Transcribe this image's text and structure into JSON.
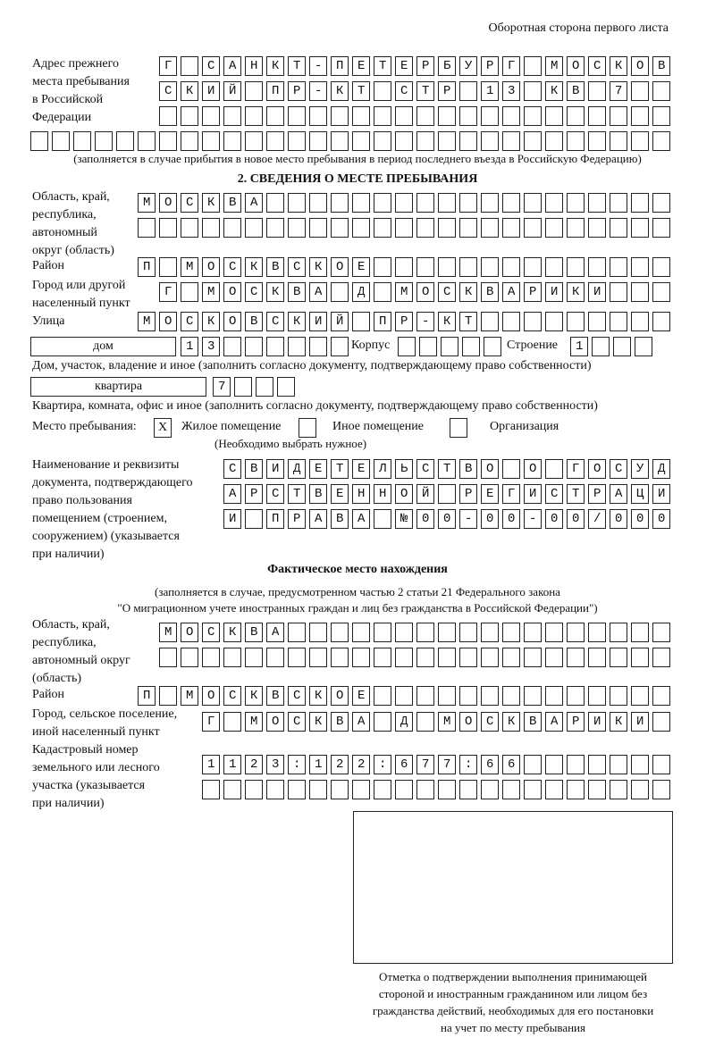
{
  "header": {
    "side_note": "Оборотная сторона первого листа"
  },
  "prev_address": {
    "label": "Адрес прежнего\nместа пребывания\nв Российской\nФедерации",
    "rows": [
      "Г САНКТ-ПЕТЕРБУРГ МОСКОВ",
      "СКИЙ ПР-КТ СТР 13 КВ 7",
      "",
      ""
    ],
    "note": "(заполняется в случае прибытия в новое место пребывания в период последнего въезда в Российскую Федерацию)"
  },
  "section2": {
    "title": "2. СВЕДЕНИЯ О МЕСТЕ ПРЕБЫВАНИЯ",
    "region_label": "Область, край,\nреспублика,\nавтономный\nокруг (область)",
    "region_rows": [
      "МОСКВА",
      ""
    ],
    "district_label": "Район",
    "district": "П МОСКВСКОЕ",
    "city_label": "Город или другой\nнаселенный пункт",
    "city": "Г МОСКВА Д МОСКВАРИКИ",
    "street_label": "Улица",
    "street": "МОСКОВСКИЙ ПР-КТ",
    "house_type": "дом",
    "house": "13",
    "korpus_label": "Корпус",
    "korpus": "",
    "building_label": "Строение",
    "building": "1",
    "house_caption": "Дом, участок, владение и иное (заполнить согласно документу, подтверждающему право собственности)",
    "apt_type": "квартира",
    "apt": "7",
    "apt_caption": "Квартира, комната, офис и иное (заполнить согласно документу, подтверждающему право собственности)",
    "stay_label": "Место пребывания:",
    "stay_options": [
      {
        "label": "Жилое помещение",
        "mark": "X"
      },
      {
        "label": "Иное помещение",
        "mark": ""
      },
      {
        "label": "Организация",
        "mark": ""
      }
    ],
    "stay_hint": "(Необходимо выбрать нужное)",
    "doc_label": "Наименование и реквизиты\nдокумента, подтверждающего\nправо пользования\nпомещением (строением,\nсооружением) (указывается\nпри наличии)",
    "doc_rows": [
      "СВИДЕТЕЛЬСТВО О ГОСУД",
      "АРСТВЕННОЙ РЕГИСТРАЦИ",
      "И ПРАВА №00-00-00/000"
    ]
  },
  "actual": {
    "title": "Фактическое место нахождения",
    "note1": "(заполняется в случае, предусмотренном частью 2 статьи 21 Федерального закона",
    "note2": "\"О миграционном учете иностранных граждан и лиц без гражданства в Российской Федерации\")",
    "region_label": "Область, край,\nреспублика,\nавтономный округ\n(область)",
    "region_rows": [
      "МОСКВА",
      ""
    ],
    "district_label": "Район",
    "district": "П МОСКВСКОЕ",
    "city_label": "Город, сельское поселение,\nиной населенный пункт",
    "city": "Г МОСКВА Д МОСКВАРИКИ",
    "cadastral_label": "Кадастровый номер\nземельного или лесного\nучастка (указывается\nпри наличии)",
    "cadastral_rows": [
      "1123:122:677:66",
      ""
    ]
  },
  "stamp": {
    "caption": "Отметка о подтверждении выполнения принимающей\nстороной и иностранным гражданином или лицом без\nгражданства действий, необходимых для его постановки\nна учет по месту пребывания"
  }
}
